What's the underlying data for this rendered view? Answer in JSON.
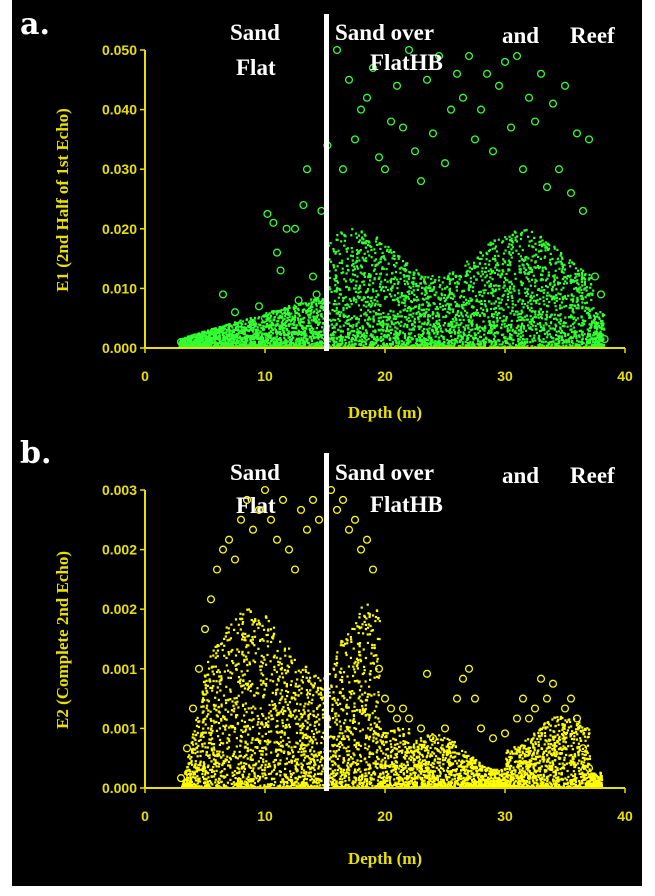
{
  "colors": {
    "background": "#000000",
    "axis": "#e8e000",
    "series_a": "#33ff33",
    "series_b": "#ffff00",
    "divider": "#ffffff"
  },
  "chart_data": [
    {
      "type": "scatter",
      "panel_label": "a.",
      "title": "",
      "xlabel": "Depth (m)",
      "ylabel": "E1 (2nd Half of 1st Echo)",
      "xlim": [
        0,
        40
      ],
      "ylim": [
        0,
        0.05
      ],
      "xticks": [
        "0",
        "10",
        "20",
        "30",
        "40"
      ],
      "yticks": [
        "0.000",
        "0.010",
        "0.020",
        "0.030",
        "0.040",
        "0.050"
      ],
      "divider_x": 15,
      "regions": [
        "Sand",
        "Flat",
        "Sand over",
        "FlatHB",
        "and",
        "Reef"
      ],
      "grid": false,
      "series": [
        {
          "color": "#33ff33",
          "marker": "open-circle",
          "points": [
            [
              3,
              0.001
            ],
            [
              4,
              0.0012
            ],
            [
              5,
              0.0015
            ],
            [
              6,
              0.002
            ],
            [
              6.5,
              0.009
            ],
            [
              7,
              0.0025
            ],
            [
              7.5,
              0.006
            ],
            [
              8,
              0.003
            ],
            [
              9,
              0.004
            ],
            [
              9.5,
              0.007
            ],
            [
              10,
              0.005
            ],
            [
              10.2,
              0.0225
            ],
            [
              10.7,
              0.021
            ],
            [
              11,
              0.016
            ],
            [
              11.3,
              0.013
            ],
            [
              11.8,
              0.02
            ],
            [
              12.5,
              0.02
            ],
            [
              12.8,
              0.008
            ],
            [
              13.2,
              0.024
            ],
            [
              13.5,
              0.03
            ],
            [
              14,
              0.012
            ],
            [
              14.3,
              0.009
            ],
            [
              14.7,
              0.023
            ],
            [
              15.2,
              0.034
            ],
            [
              16,
              0.05
            ],
            [
              16.5,
              0.03
            ],
            [
              17,
              0.045
            ],
            [
              17.5,
              0.035
            ],
            [
              18,
              0.04
            ],
            [
              18.5,
              0.042
            ],
            [
              19,
              0.047
            ],
            [
              19.5,
              0.032
            ],
            [
              20,
              0.03
            ],
            [
              20.5,
              0.038
            ],
            [
              21,
              0.044
            ],
            [
              21.5,
              0.037
            ],
            [
              22,
              0.05
            ],
            [
              22.5,
              0.033
            ],
            [
              23,
              0.028
            ],
            [
              23.5,
              0.045
            ],
            [
              24,
              0.036
            ],
            [
              24.5,
              0.049
            ],
            [
              25,
              0.031
            ],
            [
              25.5,
              0.04
            ],
            [
              26,
              0.046
            ],
            [
              26.5,
              0.042
            ],
            [
              27,
              0.049
            ],
            [
              27.5,
              0.035
            ],
            [
              28,
              0.04
            ],
            [
              28.5,
              0.046
            ],
            [
              29,
              0.033
            ],
            [
              29.5,
              0.044
            ],
            [
              30,
              0.048
            ],
            [
              30.5,
              0.037
            ],
            [
              31,
              0.049
            ],
            [
              31.5,
              0.03
            ],
            [
              32,
              0.042
            ],
            [
              32.5,
              0.038
            ],
            [
              33,
              0.046
            ],
            [
              33.5,
              0.027
            ],
            [
              34,
              0.041
            ],
            [
              34.5,
              0.03
            ],
            [
              35,
              0.044
            ],
            [
              35.5,
              0.026
            ],
            [
              36,
              0.036
            ],
            [
              36.5,
              0.023
            ],
            [
              37,
              0.035
            ],
            [
              37.5,
              0.012
            ],
            [
              38,
              0.009
            ],
            [
              38.3,
              0.0015
            ]
          ]
        }
      ]
    },
    {
      "type": "scatter",
      "panel_label": "b.",
      "title": "",
      "xlabel": "Depth (m)",
      "ylabel": "E2 (Complete 2nd Echo)",
      "xlim": [
        0,
        40
      ],
      "ylim": [
        0,
        0.003
      ],
      "xticks": [
        "0",
        "10",
        "20",
        "30",
        "40"
      ],
      "yticks": [
        "0.000",
        "0.001",
        "0.001",
        "0.002",
        "0.002",
        "0.003"
      ],
      "divider_x": 15,
      "regions": [
        "Sand",
        "Flat",
        "Sand over",
        "FlatHB",
        "and",
        "Reef"
      ],
      "grid": false,
      "series": [
        {
          "color": "#ffff00",
          "marker": "open-circle",
          "points": [
            [
              3,
              0.0001
            ],
            [
              3.5,
              0.0004
            ],
            [
              4,
              0.0008
            ],
            [
              4.5,
              0.0012
            ],
            [
              5,
              0.0016
            ],
            [
              5.5,
              0.0019
            ],
            [
              6,
              0.0022
            ],
            [
              6.5,
              0.0024
            ],
            [
              7,
              0.0025
            ],
            [
              7.5,
              0.0023
            ],
            [
              8,
              0.0027
            ],
            [
              8.5,
              0.0029
            ],
            [
              9,
              0.0026
            ],
            [
              9.5,
              0.0028
            ],
            [
              10,
              0.003
            ],
            [
              10.5,
              0.0027
            ],
            [
              11,
              0.0025
            ],
            [
              11.5,
              0.0029
            ],
            [
              12,
              0.0024
            ],
            [
              12.5,
              0.0022
            ],
            [
              13,
              0.0028
            ],
            [
              13.5,
              0.0026
            ],
            [
              14,
              0.0029
            ],
            [
              14.5,
              0.0027
            ],
            [
              15.5,
              0.003
            ],
            [
              16,
              0.0028
            ],
            [
              16.5,
              0.0029
            ],
            [
              17,
              0.0026
            ],
            [
              17.5,
              0.0027
            ],
            [
              18,
              0.0024
            ],
            [
              18.5,
              0.0025
            ],
            [
              19,
              0.0022
            ],
            [
              19.5,
              0.0012
            ],
            [
              20,
              0.0009
            ],
            [
              20.5,
              0.0008
            ],
            [
              21,
              0.0007
            ],
            [
              21.5,
              0.0008
            ],
            [
              22,
              0.0007
            ],
            [
              23,
              0.0006
            ],
            [
              23.5,
              0.00115
            ],
            [
              24,
              0.0005
            ],
            [
              25,
              0.0006
            ],
            [
              26,
              0.0009
            ],
            [
              26.5,
              0.0011
            ],
            [
              27,
              0.0012
            ],
            [
              27.5,
              0.0009
            ],
            [
              28,
              0.0006
            ],
            [
              29,
              0.0005
            ],
            [
              30,
              0.00055
            ],
            [
              31,
              0.0007
            ],
            [
              31.5,
              0.0009
            ],
            [
              32,
              0.0007
            ],
            [
              32.5,
              0.0008
            ],
            [
              33,
              0.0011
            ],
            [
              33.5,
              0.0009
            ],
            [
              34,
              0.00105
            ],
            [
              35,
              0.0008
            ],
            [
              35.5,
              0.0009
            ],
            [
              36,
              0.0007
            ],
            [
              36.5,
              0.0004
            ],
            [
              37,
              0.0002
            ],
            [
              37.5,
              0.0001
            ]
          ]
        }
      ]
    }
  ]
}
